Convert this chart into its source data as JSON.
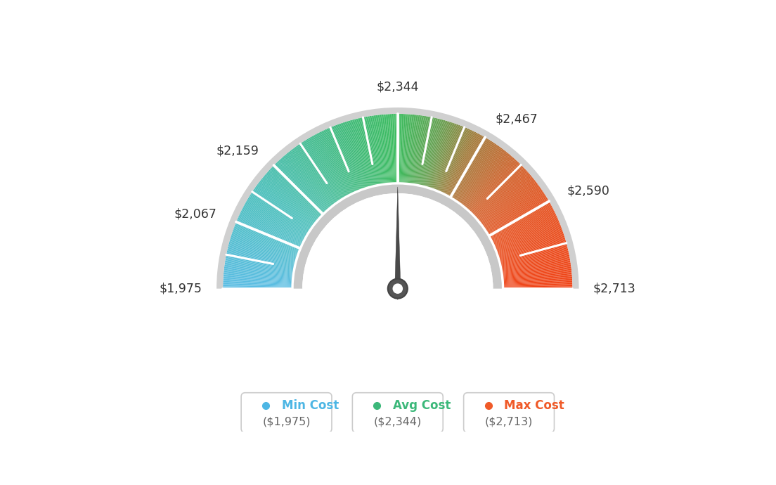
{
  "min_value": 1975,
  "max_value": 2713,
  "avg_value": 2344,
  "legend_items": [
    {
      "label": "Min Cost",
      "sublabel": "($1,975)",
      "color": "#4db6e4"
    },
    {
      "label": "Avg Cost",
      "sublabel": "($2,344)",
      "color": "#3cb87a"
    },
    {
      "label": "Max Cost",
      "sublabel": "($2,713)",
      "color": "#f05a28"
    }
  ],
  "background_color": "#ffffff",
  "label_data": [
    [
      1975,
      "$1,975",
      "right",
      "center"
    ],
    [
      2067,
      "$2,067",
      "right",
      "center"
    ],
    [
      2159,
      "$2,159",
      "right",
      "center"
    ],
    [
      2344,
      "$2,344",
      "center",
      "bottom"
    ],
    [
      2467,
      "$2,467",
      "left",
      "center"
    ],
    [
      2590,
      "$2,590",
      "left",
      "center"
    ],
    [
      2713,
      "$2,713",
      "left",
      "center"
    ]
  ],
  "tick_major": [
    1975,
    2067,
    2159,
    2344,
    2467,
    2590,
    2713
  ],
  "tick_minor": [
    2021,
    2113,
    2205,
    2251,
    2297,
    2390,
    2436,
    2528,
    2651
  ]
}
